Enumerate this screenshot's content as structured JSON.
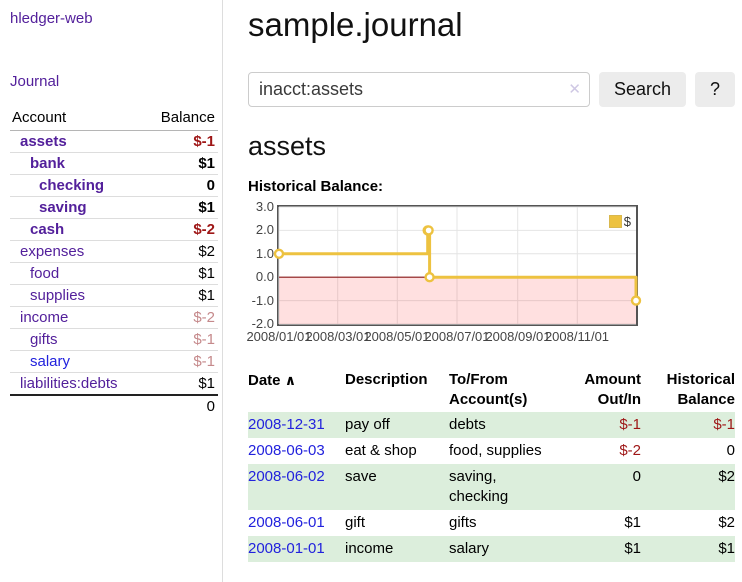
{
  "colors": {
    "purple_link": "#53209b",
    "blue_link": "#2222dd",
    "negative": "#9e1616",
    "negative_muted": "#c5898b",
    "row_green": "#dceedc",
    "chart_line": "#edc240",
    "negative_region_fill": "rgba(255,0,0,0.12)",
    "zero_line": "#8b1a1a"
  },
  "sidebar": {
    "brand": "hledger-web",
    "journal": "Journal",
    "account_header": "Account",
    "balance_header": "Balance",
    "accounts": [
      {
        "name": "assets",
        "balance": "$-1",
        "indent": 0,
        "bold": true,
        "link": "purple",
        "amount": "neg"
      },
      {
        "name": "bank",
        "balance": "$1",
        "indent": 1,
        "bold": true,
        "link": "purple",
        "amount": "plain"
      },
      {
        "name": "checking",
        "balance": "0",
        "indent": 2,
        "bold": true,
        "link": "purple",
        "amount": "plain"
      },
      {
        "name": "saving",
        "balance": "$1",
        "indent": 2,
        "bold": true,
        "link": "purple",
        "amount": "plain"
      },
      {
        "name": "cash",
        "balance": "$-2",
        "indent": 1,
        "bold": true,
        "link": "purple",
        "amount": "neg"
      },
      {
        "name": "expenses",
        "balance": "$2",
        "indent": 0,
        "bold": false,
        "link": "purple",
        "amount": "plain"
      },
      {
        "name": "food",
        "balance": "$1",
        "indent": 1,
        "bold": false,
        "link": "purple",
        "amount": "plain"
      },
      {
        "name": "supplies",
        "balance": "$1",
        "indent": 1,
        "bold": false,
        "link": "purple",
        "amount": "plain"
      },
      {
        "name": "income",
        "balance": "$-2",
        "indent": 0,
        "bold": false,
        "link": "purple",
        "amount": "negmuted"
      },
      {
        "name": "gifts",
        "balance": "$-1",
        "indent": 1,
        "bold": false,
        "link": "purple",
        "amount": "negmuted"
      },
      {
        "name": "salary",
        "balance": "$-1",
        "indent": 1,
        "bold": false,
        "link": "blue",
        "amount": "negmuted"
      },
      {
        "name": "liabilities:debts",
        "balance": "$1",
        "indent": 0,
        "bold": false,
        "link": "purple",
        "amount": "plain"
      }
    ],
    "total": "0"
  },
  "main": {
    "title": "sample.journal",
    "search": {
      "value": "inacct:assets",
      "clear": "✕",
      "button": "Search",
      "help": "?"
    },
    "account_heading": "assets",
    "chart_heading": "Historical Balance:"
  },
  "register": {
    "headers": {
      "date": "Date",
      "sort": "∧",
      "description": "Description",
      "accounts": "To/From Account(s)",
      "amount": "Amount Out/In",
      "balance": "Historical Balance"
    },
    "rows": [
      {
        "date": "2008-12-31",
        "description": "pay off",
        "accounts": "debts",
        "amount": "$-1",
        "amount_neg": true,
        "balance": "$-1",
        "balance_neg": true,
        "shaded": true
      },
      {
        "date": "2008-06-03",
        "description": "eat & shop",
        "accounts": "food, supplies",
        "amount": "$-2",
        "amount_neg": true,
        "balance": "0",
        "balance_neg": false,
        "shaded": false
      },
      {
        "date": "2008-06-02",
        "description": "save",
        "accounts": "saving, checking",
        "amount": "0",
        "amount_neg": false,
        "balance": "$2",
        "balance_neg": false,
        "shaded": true
      },
      {
        "date": "2008-06-01",
        "description": "gift",
        "accounts": "gifts",
        "amount": "$1",
        "amount_neg": false,
        "balance": "$2",
        "balance_neg": false,
        "shaded": false
      },
      {
        "date": "2008-01-01",
        "description": "income",
        "accounts": "salary",
        "amount": "$1",
        "amount_neg": false,
        "balance": "$1",
        "balance_neg": false,
        "shaded": true
      }
    ]
  },
  "chart_data": {
    "type": "line",
    "step": true,
    "title": "Historical Balance",
    "series": [
      {
        "name": "$",
        "color": "#edc240",
        "points": [
          [
            "2008-01-01",
            1
          ],
          [
            "2008-06-01",
            2
          ],
          [
            "2008-06-02",
            2
          ],
          [
            "2008-06-03",
            0
          ],
          [
            "2008-12-31",
            -1
          ]
        ]
      }
    ],
    "x_range": [
      "2008-01-01",
      "2008-12-31"
    ],
    "xticks": [
      {
        "label": "2008/01/01",
        "date": "2008-01-01"
      },
      {
        "label": "2008/03/01",
        "date": "2008-03-01"
      },
      {
        "label": "2008/05/01",
        "date": "2008-05-01"
      },
      {
        "label": "2008/07/01",
        "date": "2008-07-01"
      },
      {
        "label": "2008/09/01",
        "date": "2008-09-01"
      },
      {
        "label": "2008/11/01",
        "date": "2008-11-01"
      }
    ],
    "yticks": [
      "3.0",
      "2.0",
      "1.0",
      "0.0",
      "-1.0",
      "-2.0"
    ],
    "ylim": [
      -2,
      3
    ],
    "grid": true,
    "negative_region_shaded": true,
    "legend": {
      "label": "$",
      "position": "top-right"
    }
  }
}
